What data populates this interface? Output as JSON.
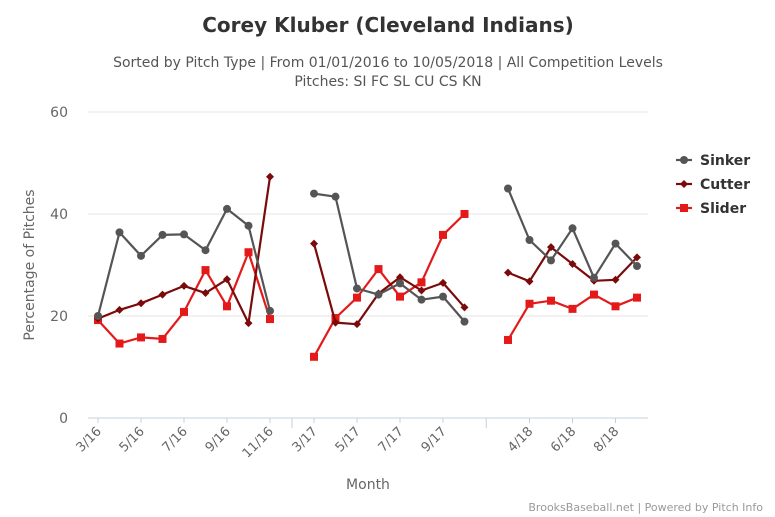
{
  "chart_data": {
    "type": "line",
    "title": "Corey Kluber (Cleveland Indians)",
    "subtitle_line1": "Sorted by Pitch Type | From 01/01/2016 to 10/05/2018 | All Competition Levels",
    "subtitle_line2": "Pitches: SI FC SL CU CS KN",
    "xlabel": "Month",
    "ylabel": "Percentage of Pitches",
    "credit": "BrooksBaseball.net | Powered by Pitch Info",
    "ylim": [
      0,
      60
    ],
    "yticks": [
      "0",
      "20",
      "40",
      "60"
    ],
    "grid": true,
    "legend_position": "right",
    "x_tick_labels": [
      "3/16",
      "5/16",
      "7/16",
      "9/16",
      "11/16",
      "3/17",
      "5/17",
      "7/17",
      "9/17",
      "4/18",
      "6/18",
      "8/18"
    ],
    "x": [
      "3/16",
      "4/16",
      "5/16",
      "6/16",
      "7/16",
      "8/16",
      "9/16",
      "10/16",
      "11/16",
      "3/17",
      "4/17",
      "5/17",
      "6/17",
      "7/17",
      "8/17",
      "9/17",
      "10/17",
      "3/18",
      "4/18",
      "5/18",
      "6/18",
      "7/18",
      "8/18",
      "9/18"
    ],
    "series": [
      {
        "name": "Sinker",
        "color": "#555555",
        "marker": "circle",
        "values": [
          20,
          36.4,
          31.8,
          35.9,
          36,
          32.9,
          41,
          37.7,
          21,
          44,
          43.4,
          25.4,
          24.2,
          26.4,
          23.2,
          23.8,
          18.9,
          45,
          34.9,
          30.9,
          37.2,
          27.5,
          34.2,
          29.8
        ]
      },
      {
        "name": "Cutter",
        "color": "#7b0a0a",
        "marker": "diamond",
        "values": [
          19.5,
          21.2,
          22.5,
          24.2,
          25.9,
          24.5,
          27.2,
          18.6,
          47.3,
          34.2,
          18.7,
          18.4,
          24.4,
          27.6,
          25,
          26.5,
          21.7,
          28.5,
          26.8,
          33.5,
          30.2,
          26.9,
          27.1,
          31.5
        ]
      },
      {
        "name": "Slider",
        "color": "#e41a1a",
        "marker": "square",
        "values": [
          19.2,
          14.6,
          15.8,
          15.5,
          20.8,
          29,
          21.9,
          32.5,
          19.4,
          12,
          19.6,
          23.6,
          29.2,
          23.8,
          26.6,
          35.9,
          40,
          15.3,
          22.4,
          23,
          21.4,
          24.2,
          21.9,
          23.6
        ]
      }
    ]
  }
}
